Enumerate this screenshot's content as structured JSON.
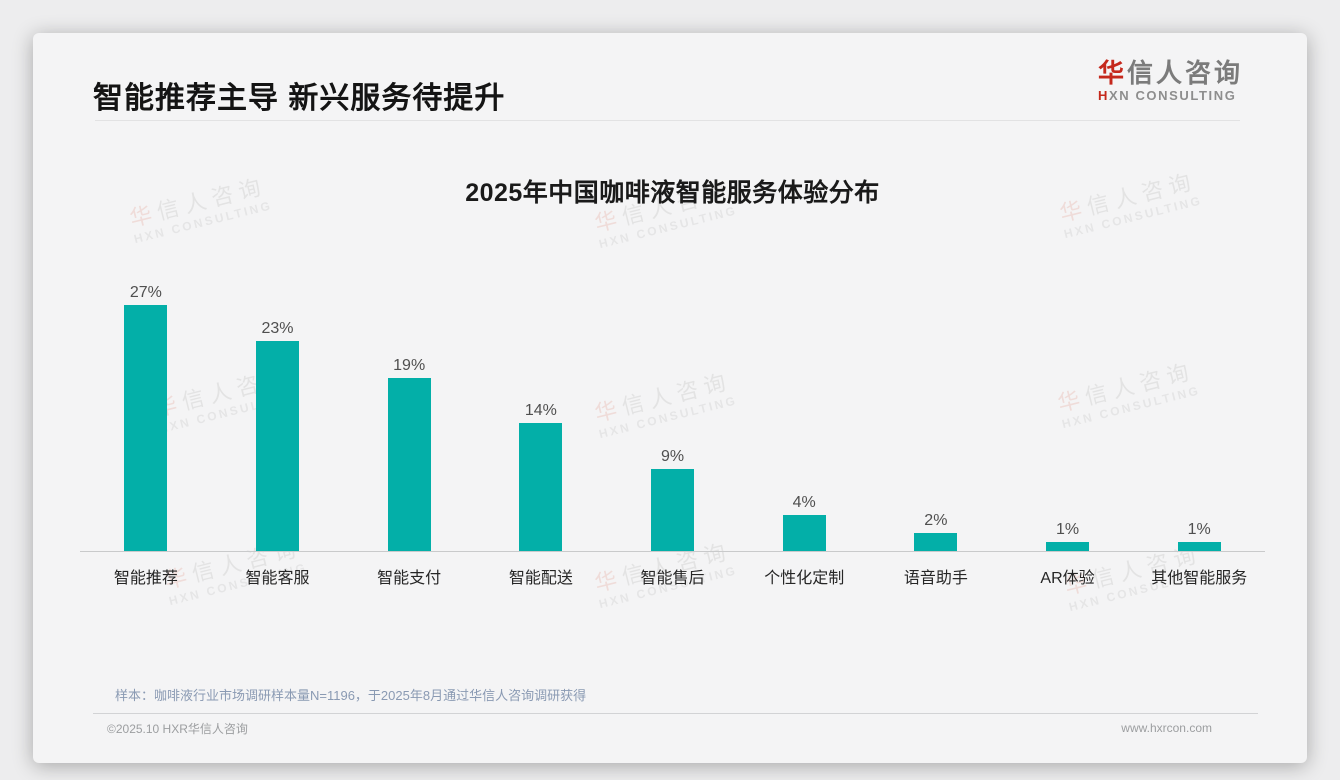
{
  "page": {
    "title": "智能推荐主导 新兴服务待提升",
    "logo": {
      "cn_accent": "华",
      "cn_rest": "信人咨询",
      "en_accent": "H",
      "en_rest": "XN CONSULTING"
    },
    "note": "样本：咖啡液行业市场调研样本量N=1196，于2025年8月通过华信人咨询调研获得",
    "footer": {
      "copyright": "©2025.10 HXR华信人咨询",
      "website": "www.hxrcon.com"
    },
    "watermark": {
      "cn_accent": "华",
      "cn_rest": "信人咨询",
      "en": "HXN CONSULTING"
    },
    "colors": {
      "accent_red": "#c5281c",
      "bar_teal": "#03afa8"
    }
  },
  "chart_data": {
    "type": "bar",
    "title": "2025年中国咖啡液智能服务体验分布",
    "categories": [
      "智能推荐",
      "智能客服",
      "智能支付",
      "智能配送",
      "智能售后",
      "个性化定制",
      "语音助手",
      "AR体验",
      "其他智能服务"
    ],
    "values": [
      27,
      23,
      19,
      14,
      9,
      4,
      2,
      1,
      1
    ],
    "unit": "%",
    "bar_color": "#03afa8",
    "ylim": [
      0,
      28
    ],
    "grid": false,
    "legend": "none",
    "value_labels_shown": true
  }
}
